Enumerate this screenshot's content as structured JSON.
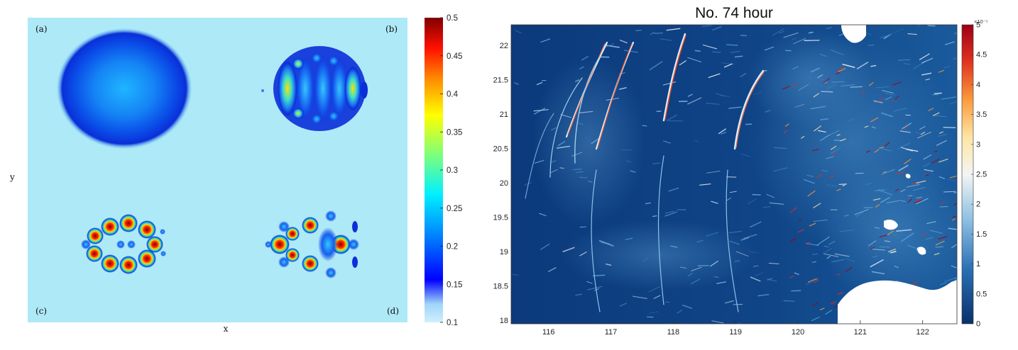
{
  "chart_data": [
    {
      "type": "heatmap",
      "title": "",
      "xlabel": "x",
      "ylabel": "y",
      "panel_labels": [
        "(a)",
        "(b)",
        "(c)",
        "(d)"
      ],
      "colorbar": {
        "min": 0.1,
        "max": 0.5,
        "ticks": [
          "0.5",
          "0.45",
          "0.4",
          "0.35",
          "0.3",
          "0.25",
          "0.2",
          "0.15",
          "0.1"
        ],
        "colormap": "jet"
      },
      "background_color": "#aee9f8"
    },
    {
      "type": "heatmap",
      "title": "No. 74 hour",
      "xlabel": "",
      "ylabel": "",
      "x_ticks": [
        "116",
        "117",
        "118",
        "119",
        "120",
        "121",
        "122"
      ],
      "y_ticks": [
        "22",
        "21.5",
        "21",
        "20.5",
        "20",
        "19.5",
        "19",
        "18.5",
        "18"
      ],
      "xlim": [
        115.4,
        122.55
      ],
      "ylim": [
        17.95,
        22.3
      ],
      "colorbar": {
        "min": 0,
        "max": 5,
        "exponent_label": "×10⁻⁵",
        "ticks": [
          "5",
          "4.5",
          "4",
          "3.5",
          "3",
          "2.5",
          "2",
          "1.5",
          "1",
          "0.5",
          "0"
        ],
        "colormap": "blue-white-red"
      },
      "land_color": "#ffffff",
      "background_color": "#0d3a7a"
    }
  ]
}
